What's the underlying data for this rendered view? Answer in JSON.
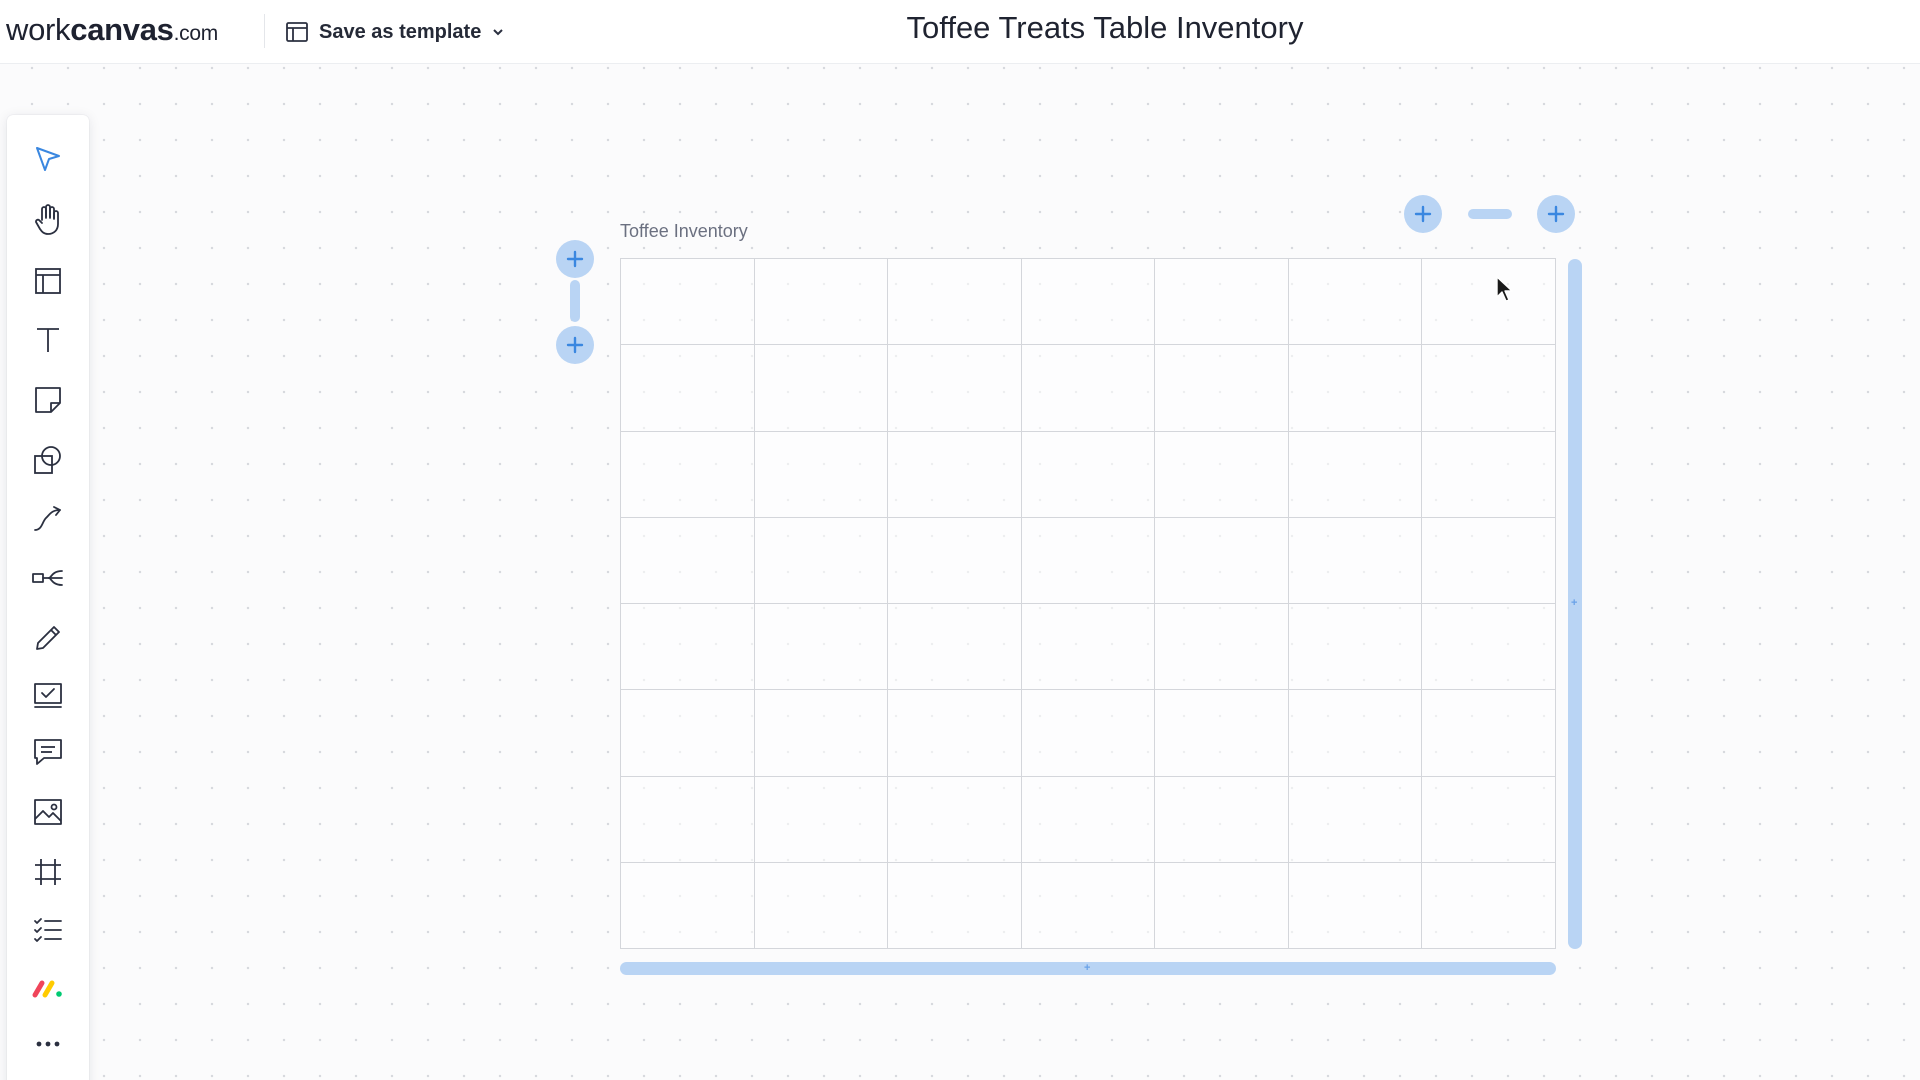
{
  "header": {
    "logo_work": "work",
    "logo_canvas": "canvas",
    "logo_domain": ".com",
    "template_label": "Save as template",
    "title": "Toffee Treats Table Inventory"
  },
  "toolbar": {
    "tools": [
      {
        "name": "select-tool",
        "icon": "pointer-arrow-icon",
        "active": true
      },
      {
        "name": "hand-tool",
        "icon": "hand-icon"
      },
      {
        "name": "template-tool",
        "icon": "layout-icon"
      },
      {
        "name": "text-tool",
        "icon": "text-icon"
      },
      {
        "name": "sticky-note-tool",
        "icon": "sticky-note-icon"
      },
      {
        "name": "shapes-tool",
        "icon": "shapes-icon"
      },
      {
        "name": "connector-tool",
        "icon": "connector-line-icon"
      },
      {
        "name": "mind-map-tool",
        "icon": "mind-map-icon"
      },
      {
        "name": "pen-tool",
        "icon": "pencil-icon"
      },
      {
        "name": "task-tool",
        "icon": "checkbox-icon"
      },
      {
        "name": "comment-tool",
        "icon": "comment-icon"
      },
      {
        "name": "image-tool",
        "icon": "image-icon"
      },
      {
        "name": "frame-tool",
        "icon": "frame-icon"
      },
      {
        "name": "list-tool",
        "icon": "checklist-icon"
      },
      {
        "name": "monday-app",
        "icon": "monday-logo-icon"
      },
      {
        "name": "more-tools",
        "icon": "more-dots-icon"
      }
    ]
  },
  "table": {
    "label": "Toffee Inventory",
    "rows": 8,
    "columns": 7
  },
  "colors": {
    "accent": "#b9d4f4",
    "accent_icon": "#3a87e0",
    "grid_line": "#d4d6db",
    "toolbar_active": "#3a87e0"
  }
}
